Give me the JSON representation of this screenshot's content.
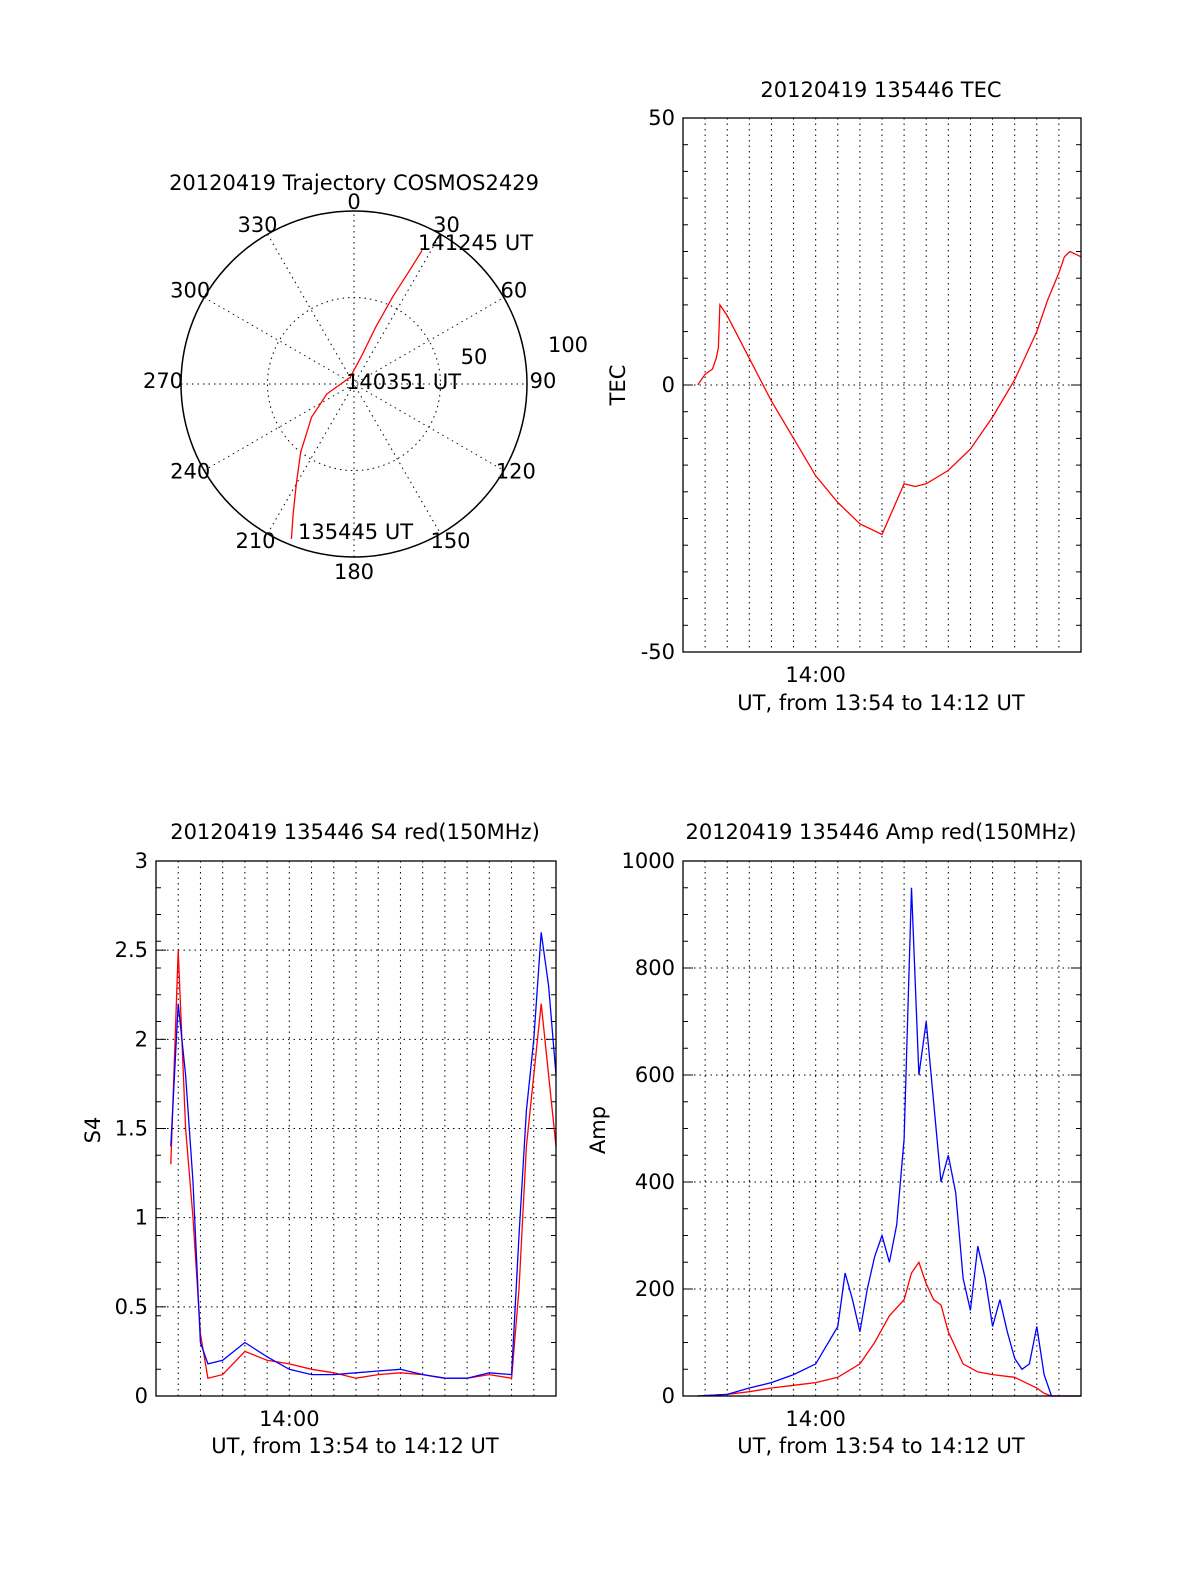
{
  "chart_data": [
    {
      "type": "polar",
      "title": "20120419 Trajectory COSMOS2429",
      "azimuth_labels": [
        "0",
        "30",
        "60",
        "90",
        "120",
        "150",
        "180",
        "210",
        "240",
        "270",
        "300",
        "330"
      ],
      "radius_labels": [
        "50",
        "100"
      ],
      "track_color": "#ff0000",
      "track": [
        {
          "az": 202,
          "el": 3
        },
        {
          "az": 205,
          "el": 15
        },
        {
          "az": 210,
          "el": 30
        },
        {
          "az": 218,
          "el": 45
        },
        {
          "az": 232,
          "el": 62
        },
        {
          "az": 250,
          "el": 75
        },
        {
          "az": 330,
          "el": 86
        },
        {
          "az": 15,
          "el": 75
        },
        {
          "az": 21,
          "el": 58
        },
        {
          "az": 24,
          "el": 40
        },
        {
          "az": 26,
          "el": 25
        },
        {
          "az": 27,
          "el": 12
        }
      ],
      "annotations": [
        {
          "text": "141245 UT",
          "az": 30,
          "el": 10
        },
        {
          "text": "140351 UT",
          "az": 90,
          "el": 90
        },
        {
          "text": "135445 UT",
          "az": 200,
          "el": 10
        }
      ]
    },
    {
      "type": "line",
      "title": "20120419 135446 TEC",
      "xlabel": "UT, from 13:54 to 14:12 UT",
      "ylabel": "TEC",
      "xlim": [
        "13:54",
        "14:12"
      ],
      "ylim": [
        -50,
        50
      ],
      "x_ticks": [
        "14:00"
      ],
      "y_ticks": [
        -50,
        0,
        50
      ],
      "grid": true,
      "series": [
        {
          "color": "#ff0000",
          "x": [
            "13:54:40",
            "13:55:00",
            "13:55:20",
            "13:55:30",
            "13:55:36",
            "13:55:40",
            "13:56:00",
            "13:57:00",
            "13:58:00",
            "13:59:00",
            "14:00:00",
            "14:01:00",
            "14:02:00",
            "14:03:00",
            "14:04:00",
            "14:04:30",
            "14:05:00",
            "14:06:00",
            "14:07:00",
            "14:08:00",
            "14:09:00",
            "14:10:00",
            "14:10:30",
            "14:11:00",
            "14:11:15",
            "14:11:30",
            "14:12:00"
          ],
          "values": [
            0,
            2,
            3,
            5,
            7,
            15,
            13,
            5,
            -3,
            -10,
            -17,
            -22,
            -26,
            -28,
            -18.5,
            -19,
            -18.5,
            -16,
            -12,
            -6,
            1,
            10,
            16,
            21,
            24,
            25,
            24
          ]
        }
      ]
    },
    {
      "type": "line",
      "title": "20120419 135446 S4 red(150MHz)",
      "xlabel": "UT, from 13:54 to 14:12 UT",
      "ylabel": "S4",
      "xlim": [
        "13:54",
        "14:12"
      ],
      "ylim": [
        0,
        3
      ],
      "x_ticks": [
        "14:00"
      ],
      "y_ticks": [
        0,
        0.5,
        1,
        1.5,
        2,
        2.5,
        3
      ],
      "grid": true,
      "series": [
        {
          "color": "#ff0000",
          "x": [
            "13:54:40",
            "13:55:00",
            "13:55:20",
            "13:55:40",
            "13:56:00",
            "13:56:20",
            "13:57:00",
            "13:58:00",
            "13:59:00",
            "14:00:00",
            "14:01:00",
            "14:02:00",
            "14:03:00",
            "14:04:00",
            "14:05:00",
            "14:06:00",
            "14:07:00",
            "14:08:00",
            "14:09:00",
            "14:10:00",
            "14:10:20",
            "14:10:40",
            "14:11:00",
            "14:11:20",
            "14:11:40",
            "14:12:00"
          ],
          "values": [
            1.3,
            2.5,
            1.5,
            1.0,
            0.35,
            0.1,
            0.12,
            0.25,
            0.2,
            0.18,
            0.15,
            0.13,
            0.1,
            0.12,
            0.13,
            0.12,
            0.1,
            0.1,
            0.12,
            0.1,
            0.6,
            1.4,
            1.8,
            2.2,
            1.8,
            1.4
          ]
        },
        {
          "color": "#0000ff",
          "x": [
            "13:54:40",
            "13:55:00",
            "13:55:20",
            "13:55:40",
            "13:56:00",
            "13:56:20",
            "13:57:00",
            "13:58:00",
            "13:59:00",
            "14:00:00",
            "14:01:00",
            "14:02:00",
            "14:03:00",
            "14:04:00",
            "14:05:00",
            "14:06:00",
            "14:07:00",
            "14:08:00",
            "14:09:00",
            "14:10:00",
            "14:10:20",
            "14:10:40",
            "14:11:00",
            "14:11:20",
            "14:11:40",
            "14:12:00"
          ],
          "values": [
            1.4,
            2.2,
            1.8,
            1.2,
            0.3,
            0.18,
            0.2,
            0.3,
            0.22,
            0.15,
            0.12,
            0.12,
            0.13,
            0.14,
            0.15,
            0.12,
            0.1,
            0.1,
            0.13,
            0.12,
            0.9,
            1.6,
            2.0,
            2.6,
            2.3,
            1.8
          ]
        }
      ]
    },
    {
      "type": "line",
      "title": "20120419 135446 Amp red(150MHz)",
      "xlabel": "UT, from 13:54 to 14:12 UT",
      "ylabel": "Amp",
      "xlim": [
        "13:54",
        "14:12"
      ],
      "ylim": [
        0,
        1000
      ],
      "x_ticks": [
        "14:00"
      ],
      "y_ticks": [
        0,
        200,
        400,
        600,
        800,
        1000
      ],
      "grid": true,
      "series": [
        {
          "color": "#ff0000",
          "x": [
            "13:54:40",
            "13:56:00",
            "13:57:00",
            "13:58:00",
            "13:59:00",
            "14:00:00",
            "14:01:00",
            "14:02:00",
            "14:02:40",
            "14:03:20",
            "14:04:00",
            "14:04:20",
            "14:04:40",
            "14:05:00",
            "14:05:20",
            "14:05:40",
            "14:06:00",
            "14:06:40",
            "14:07:20",
            "14:08:00",
            "14:09:00",
            "14:10:00",
            "14:10:20",
            "14:10:40",
            "14:12:00"
          ],
          "values": [
            0,
            3,
            8,
            15,
            20,
            25,
            35,
            60,
            100,
            150,
            180,
            230,
            250,
            210,
            180,
            170,
            120,
            60,
            45,
            40,
            35,
            15,
            5,
            0,
            0
          ]
        },
        {
          "color": "#0000ff",
          "x": [
            "13:54:40",
            "13:56:00",
            "13:57:00",
            "13:58:00",
            "13:59:00",
            "14:00:00",
            "14:01:00",
            "14:01:20",
            "14:01:40",
            "14:02:00",
            "14:02:20",
            "14:02:40",
            "14:03:00",
            "14:03:20",
            "14:03:40",
            "14:04:00",
            "14:04:20",
            "14:04:40",
            "14:05:00",
            "14:05:20",
            "14:05:40",
            "14:06:00",
            "14:06:20",
            "14:06:40",
            "14:07:00",
            "14:07:20",
            "14:07:40",
            "14:08:00",
            "14:08:20",
            "14:08:40",
            "14:09:00",
            "14:09:20",
            "14:09:40",
            "14:10:00",
            "14:10:20",
            "14:10:40",
            "14:12:00"
          ],
          "values": [
            0,
            3,
            15,
            25,
            40,
            60,
            130,
            230,
            180,
            120,
            200,
            260,
            300,
            250,
            320,
            480,
            950,
            600,
            700,
            550,
            400,
            450,
            380,
            220,
            160,
            280,
            220,
            130,
            180,
            120,
            70,
            50,
            60,
            130,
            40,
            0,
            0
          ]
        }
      ]
    }
  ]
}
